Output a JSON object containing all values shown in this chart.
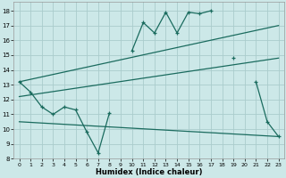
{
  "xlabel": "Humidex (Indice chaleur)",
  "background_color": "#cce8e8",
  "grid_color": "#aacccc",
  "line_color": "#1a6b5e",
  "xlim": [
    -0.5,
    23.5
  ],
  "ylim": [
    8,
    18.6
  ],
  "xticks": [
    0,
    1,
    2,
    3,
    4,
    5,
    6,
    7,
    8,
    9,
    10,
    11,
    12,
    13,
    14,
    15,
    16,
    17,
    18,
    19,
    20,
    21,
    22,
    23
  ],
  "yticks": [
    8,
    9,
    10,
    11,
    12,
    13,
    14,
    15,
    16,
    17,
    18
  ],
  "series_zigzag": {
    "x": [
      0,
      1,
      2,
      3,
      4,
      5,
      6,
      7,
      8,
      9,
      10,
      11,
      12,
      13,
      14,
      15,
      16,
      17,
      18,
      19,
      20,
      21,
      22,
      23
    ],
    "y": [
      13.2,
      12.5,
      11.5,
      11.0,
      11.5,
      11.3,
      9.8,
      8.4,
      11.1,
      null,
      15.3,
      17.2,
      16.5,
      17.9,
      16.5,
      17.9,
      17.8,
      18.0,
      null,
      14.8,
      null,
      13.2,
      10.5,
      9.5
    ]
  },
  "series_upper": {
    "x": [
      0,
      23
    ],
    "y": [
      13.2,
      17.0
    ]
  },
  "series_mid": {
    "x": [
      0,
      23
    ],
    "y": [
      12.2,
      14.8
    ]
  },
  "series_lower": {
    "x": [
      0,
      23
    ],
    "y": [
      10.5,
      9.5
    ]
  }
}
